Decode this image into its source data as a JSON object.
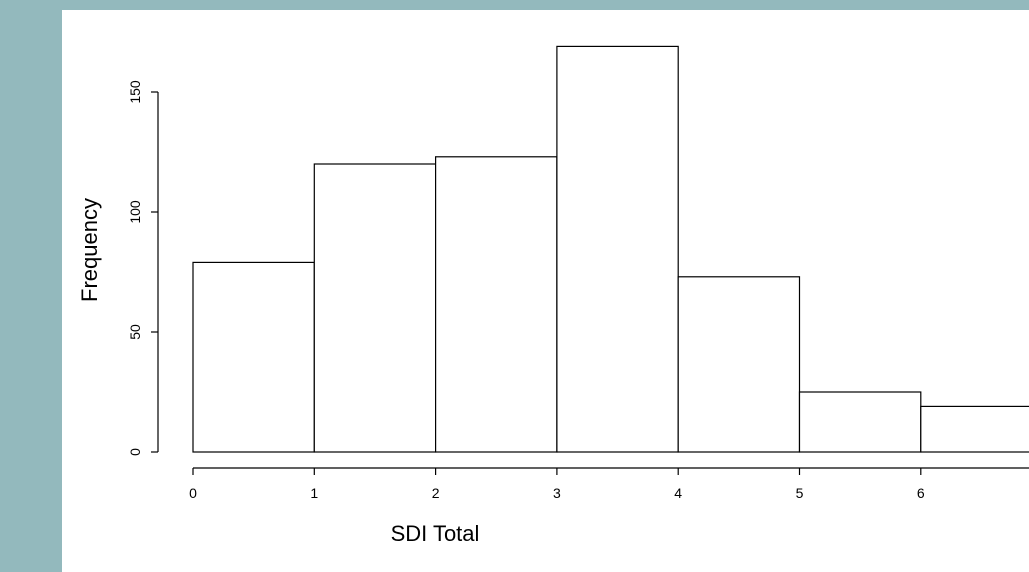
{
  "slide": {
    "background_color": "#93b9bd",
    "panel_color": "#ffffff"
  },
  "chart_data": {
    "type": "bar",
    "subtype": "histogram",
    "title": "",
    "xlabel": "SDI Total",
    "ylabel": "Frequency",
    "bins": [
      {
        "from": 0,
        "to": 1,
        "value": 79
      },
      {
        "from": 1,
        "to": 2,
        "value": 120
      },
      {
        "from": 2,
        "to": 3,
        "value": 123
      },
      {
        "from": 3,
        "to": 4,
        "value": 169
      },
      {
        "from": 4,
        "to": 5,
        "value": 73
      },
      {
        "from": 5,
        "to": 6,
        "value": 25
      },
      {
        "from": 6,
        "to": 7,
        "value": 19
      }
    ],
    "xlim": [
      0,
      7
    ],
    "ylim": [
      0,
      169
    ],
    "xticks": [
      0,
      1,
      2,
      3,
      4,
      5,
      6
    ],
    "yticks": [
      0,
      50,
      100,
      150
    ],
    "grid": false,
    "legend": "none",
    "bar_fill": "#ffffff",
    "bar_stroke": "#000000"
  }
}
